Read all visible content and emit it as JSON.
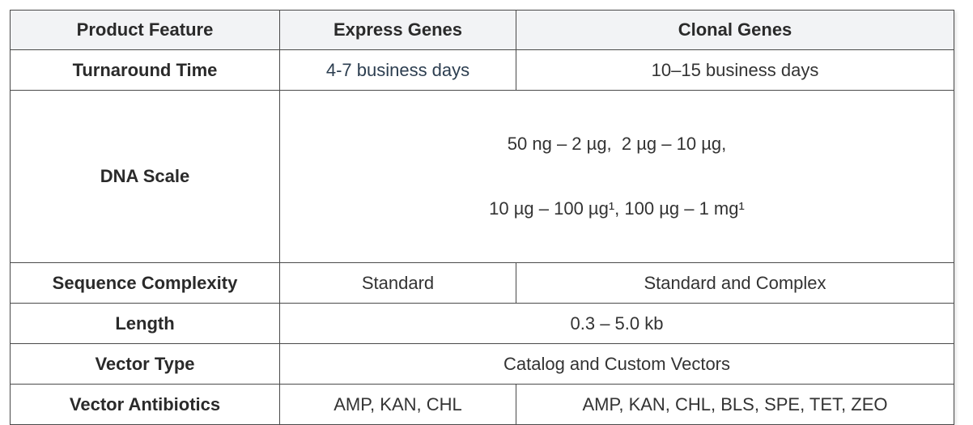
{
  "table": {
    "header": [
      "Product Feature",
      "Express Genes",
      "Clonal Genes"
    ],
    "rows": [
      [
        "Turnaround Time",
        "4-7 business days",
        "10–15 business days"
      ],
      [
        "DNA Scale",
        [
          "50 ng – 2 µg,  2 µg – 10 µg,",
          "10 µg – 100 µg¹, 100 µg – 1 mg¹"
        ]
      ],
      [
        "Sequence Complexity",
        "Standard",
        "Standard and Complex"
      ],
      [
        "Length",
        "0.3 – 5.0 kb"
      ],
      [
        "Vector Type",
        "Catalog and Custom Vectors"
      ],
      [
        "Vector Antibiotics",
        "AMP, KAN, CHL",
        "AMP, KAN, CHL, BLS, SPE, TET, ZEO"
      ]
    ]
  }
}
